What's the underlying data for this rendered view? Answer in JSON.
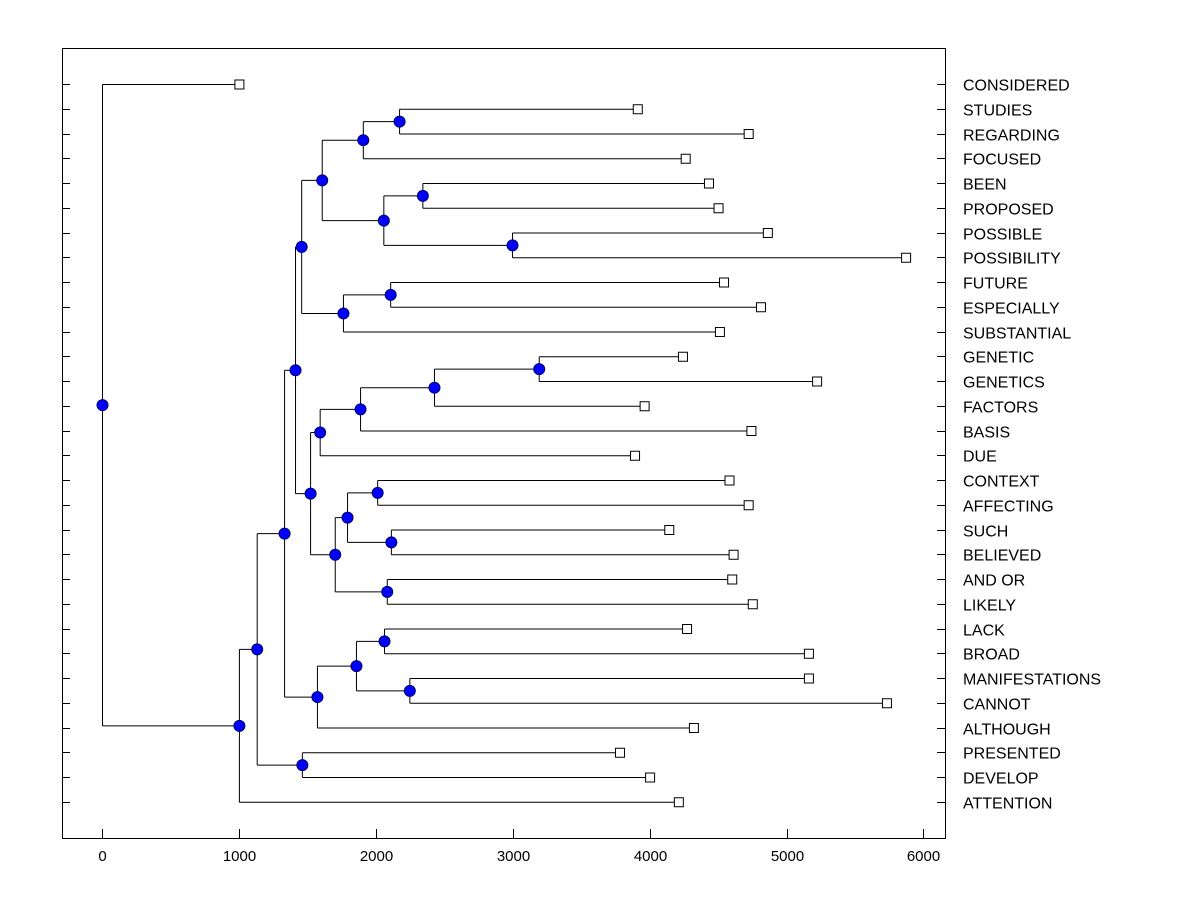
{
  "chart_data": {
    "type": "dendrogram",
    "title": "",
    "xlabel": "",
    "ylabel": "",
    "xlim": [
      -290,
      6160
    ],
    "xticks": [
      0,
      1000,
      2000,
      3000,
      4000,
      5000,
      6000
    ],
    "grid": false,
    "colors": {
      "node": "#0000ff",
      "node_stroke": "#000066",
      "leaf": "#ffffff",
      "line": "#000000"
    },
    "leaves": [
      {
        "name": "CONSIDERED",
        "value": 1000
      },
      {
        "name": "STUDIES",
        "value": 3910
      },
      {
        "name": "REGARDING",
        "value": 4720
      },
      {
        "name": "FOCUSED",
        "value": 4260
      },
      {
        "name": "BEEN",
        "value": 4430
      },
      {
        "name": "PROPOSED",
        "value": 4500
      },
      {
        "name": "POSSIBLE",
        "value": 4860
      },
      {
        "name": "POSSIBILITY",
        "value": 5870
      },
      {
        "name": "FUTURE",
        "value": 4540
      },
      {
        "name": "ESPECIALLY",
        "value": 4810
      },
      {
        "name": "SUBSTANTIAL",
        "value": 4510
      },
      {
        "name": "GENETIC",
        "value": 4240
      },
      {
        "name": "GENETICS",
        "value": 5220
      },
      {
        "name": "FACTORS",
        "value": 3960
      },
      {
        "name": "BASIS",
        "value": 4740
      },
      {
        "name": "DUE",
        "value": 3890
      },
      {
        "name": "CONTEXT",
        "value": 4580
      },
      {
        "name": "AFFECTING",
        "value": 4720
      },
      {
        "name": "SUCH",
        "value": 4140
      },
      {
        "name": "BELIEVED",
        "value": 4610
      },
      {
        "name": "AND OR",
        "value": 4600
      },
      {
        "name": "LIKELY",
        "value": 4750
      },
      {
        "name": "LACK",
        "value": 4270
      },
      {
        "name": "BROAD",
        "value": 5160
      },
      {
        "name": "MANIFESTATIONS",
        "value": 5160
      },
      {
        "name": "CANNOT",
        "value": 5730
      },
      {
        "name": "ALTHOUGH",
        "value": 4320
      },
      {
        "name": "PRESENTED",
        "value": 3780
      },
      {
        "name": "DEVELOP",
        "value": 4000
      },
      {
        "name": "ATTENTION",
        "value": 4210
      }
    ],
    "tree": {
      "value": 0,
      "children": [
        0,
        {
          "value": 1000,
          "children": [
            {
              "value": 1130,
              "children": [
                {
                  "value": 1330,
                  "children": [
                    {
                      "value": 1410,
                      "children": [
                        {
                          "value": 1455,
                          "children": [
                            {
                              "value": 1605,
                              "children": [
                                {
                                  "value": 1905,
                                  "children": [
                                    {
                                      "value": 2170,
                                      "children": [
                                        1,
                                        2
                                      ]
                                    },
                                    3
                                  ]
                                },
                                {
                                  "value": 2055,
                                  "children": [
                                    {
                                      "value": 2340,
                                      "children": [
                                        4,
                                        5
                                      ]
                                    },
                                    {
                                      "value": 2995,
                                      "children": [
                                        6,
                                        7
                                      ]
                                    }
                                  ]
                                }
                              ]
                            },
                            {
                              "value": 1760,
                              "children": [
                                {
                                  "value": 2105,
                                  "children": [
                                    8,
                                    9
                                  ]
                                },
                                10
                              ]
                            }
                          ]
                        },
                        {
                          "value": 1520,
                          "children": [
                            {
                              "value": 1590,
                              "children": [
                                {
                                  "value": 1885,
                                  "children": [
                                    {
                                      "value": 2425,
                                      "children": [
                                        {
                                          "value": 3190,
                                          "children": [
                                            11,
                                            12
                                          ]
                                        },
                                        13
                                      ]
                                    },
                                    14
                                  ]
                                },
                                15
                              ]
                            },
                            {
                              "value": 1700,
                              "children": [
                                {
                                  "value": 1790,
                                  "children": [
                                    {
                                      "value": 2010,
                                      "children": [
                                        16,
                                        17
                                      ]
                                    },
                                    {
                                      "value": 2110,
                                      "children": [
                                        18,
                                        19
                                      ]
                                    }
                                  ]
                                },
                                {
                                  "value": 2080,
                                  "children": [
                                    20,
                                    21
                                  ]
                                }
                              ]
                            }
                          ]
                        }
                      ]
                    },
                    {
                      "value": 1570,
                      "children": [
                        {
                          "value": 1855,
                          "children": [
                            {
                              "value": 2060,
                              "children": [
                                22,
                                23
                              ]
                            },
                            {
                              "value": 2245,
                              "children": [
                                24,
                                25
                              ]
                            }
                          ]
                        },
                        26
                      ]
                    }
                  ]
                },
                {
                  "value": 1460,
                  "children": [
                    27,
                    28
                  ]
                }
              ]
            },
            29
          ]
        }
      ]
    }
  }
}
